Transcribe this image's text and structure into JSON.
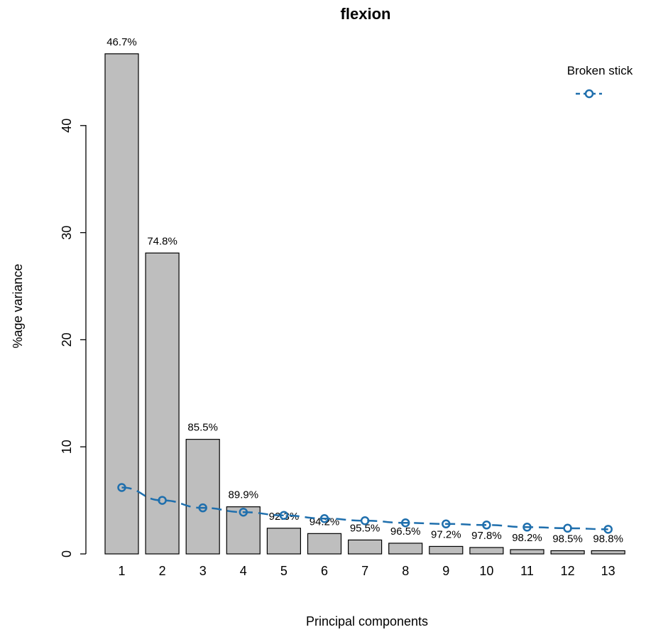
{
  "chart_data": {
    "type": "bar",
    "title": "flexion",
    "xlabel": "Principal components",
    "ylabel": "%age variance",
    "categories": [
      "1",
      "2",
      "3",
      "4",
      "5",
      "6",
      "7",
      "8",
      "9",
      "10",
      "11",
      "12",
      "13"
    ],
    "series": [
      {
        "values": [
          46.7,
          28.1,
          10.7,
          4.4,
          2.4,
          1.9,
          1.3,
          1.0,
          0.7,
          0.6,
          0.4,
          0.3,
          0.3
        ]
      },
      {
        "name": "Broken stick",
        "type": "line",
        "values": [
          6.2,
          5.0,
          4.3,
          3.9,
          3.6,
          3.3,
          3.1,
          2.9,
          2.8,
          2.7,
          2.5,
          2.4,
          2.3
        ]
      }
    ],
    "data_labels": [
      "46.7%",
      "74.8%",
      "85.5%",
      "89.9%",
      "92.3%",
      "94.2%",
      "95.5%",
      "96.5%",
      "97.2%",
      "97.8%",
      "98.2%",
      "98.5%",
      "98.8%"
    ],
    "yticks": [
      "0",
      "10",
      "20",
      "30",
      "40"
    ],
    "ylim": [
      0,
      46.7
    ],
    "grid": false,
    "legend_position": "top-right",
    "colors": {
      "bar_fill": "#bebebe",
      "bar_stroke": "#000000",
      "line": "#1f6fad"
    }
  }
}
